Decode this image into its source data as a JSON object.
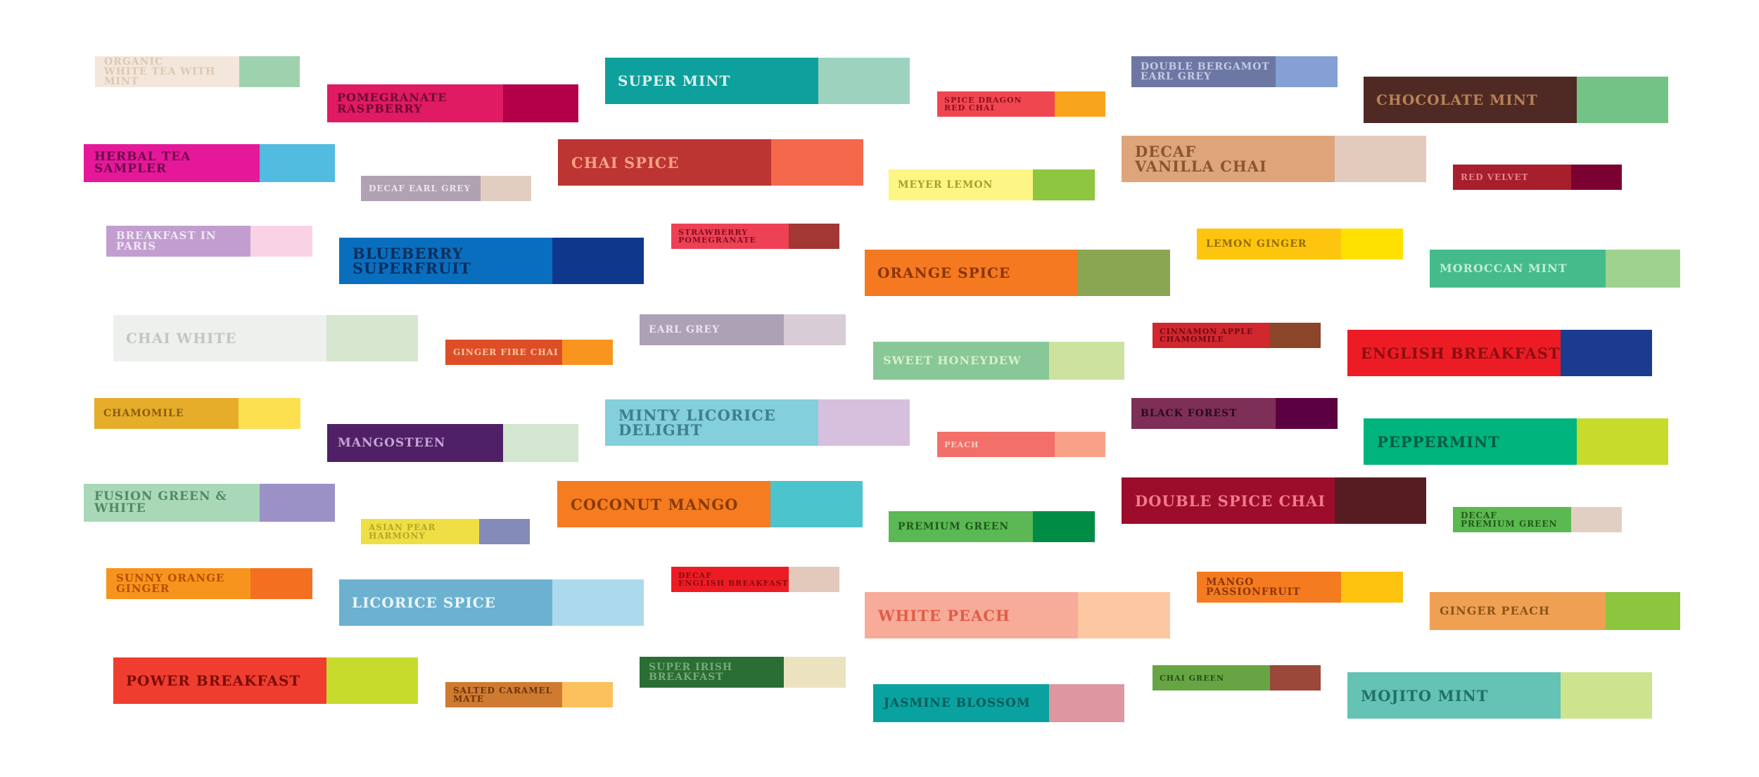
{
  "swatches": [
    {
      "label": "Organic\nWhite Tea with Mint",
      "main": "#f3e7db",
      "accent": "#9ed2ae",
      "text": "#dcc7b4"
    },
    {
      "label": "Pomegranate\nRaspberry",
      "main": "#e01a63",
      "accent": "#b40048",
      "text": "#6e0a2e"
    },
    {
      "label": "Super Mint",
      "main": "#0ea09c",
      "accent": "#9dd3be",
      "text": "#d7f1ee"
    },
    {
      "label": "Spice Dragon\nRed Chai",
      "main": "#ef4650",
      "accent": "#f8a51b",
      "text": "#8d0f1a"
    },
    {
      "label": "Double Bergamot\nEarl Grey",
      "main": "#6c77a3",
      "accent": "#85a0d4",
      "text": "#c5cbe4"
    },
    {
      "label": "Chocolate Mint",
      "main": "#4f2a24",
      "accent": "#72c385",
      "text": "#b98156"
    },
    {
      "label": "Herbal Tea Sampler",
      "main": "#e5189a",
      "accent": "#52bbe0",
      "text": "#6d0b4a"
    },
    {
      "label": "Decaf Earl Grey",
      "main": "#b1a2b2",
      "accent": "#e2cec1",
      "text": "#ece3ee"
    },
    {
      "label": "Chai Spice",
      "main": "#bc3532",
      "accent": "#f4684b",
      "text": "#f7a282"
    },
    {
      "label": "Meyer Lemon",
      "main": "#fdf584",
      "accent": "#8ec63f",
      "text": "#a7a02b"
    },
    {
      "label": "Decaf\nVanilla Chai",
      "main": "#dea57a",
      "accent": "#e2cbbd",
      "text": "#8a5631"
    },
    {
      "label": "Red Velvet",
      "main": "#a71e2d",
      "accent": "#7a0131",
      "text": "#e58491"
    },
    {
      "label": "Breakfast in Paris",
      "main": "#c29ed0",
      "accent": "#fad2e5",
      "text": "#f2e6f6"
    },
    {
      "label": "Blueberry\nSuperfruit",
      "main": "#0a6ebe",
      "accent": "#0f388c",
      "text": "#072f5f"
    },
    {
      "label": "Strawberry\nPomegranate",
      "main": "#ee4156",
      "accent": "#a23734",
      "text": "#80101d"
    },
    {
      "label": "Orange Spice",
      "main": "#f47921",
      "accent": "#8ba652",
      "text": "#8a3406"
    },
    {
      "label": "Lemon Ginger",
      "main": "#fdc50d",
      "accent": "#fee100",
      "text": "#946c00"
    },
    {
      "label": "Moroccan Mint",
      "main": "#45bb8c",
      "accent": "#9fd18f",
      "text": "#c2ecd9"
    },
    {
      "label": "Chai White",
      "main": "#eef0ee",
      "accent": "#d6e6cf",
      "text": "#c2c7c4"
    },
    {
      "label": "Ginger Fire Chai",
      "main": "#dd4e27",
      "accent": "#f8951f",
      "text": "#fac5a3"
    },
    {
      "label": "Earl Grey",
      "main": "#ada1b6",
      "accent": "#d8ccd6",
      "text": "#ebe5ee"
    },
    {
      "label": "Sweet Honeydew",
      "main": "#88c797",
      "accent": "#cde29e",
      "text": "#d6f1c8"
    },
    {
      "label": "Cinnamon Apple\nChamomile",
      "main": "#d1272f",
      "accent": "#8b4528",
      "text": "#6c0a12"
    },
    {
      "label": "English Breakfast",
      "main": "#ed1c24",
      "accent": "#1b3c8e",
      "text": "#8c0d12"
    },
    {
      "label": "Chamomile",
      "main": "#e5ad2a",
      "accent": "#fde050",
      "text": "#8a5c0a"
    },
    {
      "label": "Mangosteen",
      "main": "#502066",
      "accent": "#d3e6cf",
      "text": "#c4a4d6"
    },
    {
      "label": "Minty Licorice\nDelight",
      "main": "#83cfdb",
      "accent": "#d6c0dd",
      "text": "#3e7f8b"
    },
    {
      "label": "Black Forest",
      "main": "#7e2f57",
      "accent": "#5b0040",
      "text": "#2a0a1e"
    },
    {
      "label": "Peppermint",
      "main": "#00b47d",
      "accent": "#c6db2c",
      "text": "#075c40"
    },
    {
      "label": "Peach",
      "main": "#f36f69",
      "accent": "#f9a188",
      "text": "#fbd0c6"
    },
    {
      "label": "Fusion Green & White",
      "main": "#a9d8b8",
      "accent": "#9b91c6",
      "text": "#4e8a62"
    },
    {
      "label": "Coconut Mango",
      "main": "#f57c21",
      "accent": "#4cc4cd",
      "text": "#8a3b06"
    },
    {
      "label": "Double Spice Chai",
      "main": "#9b0d2b",
      "accent": "#571b22",
      "text": "#f27a8d"
    },
    {
      "label": "Asian Pear Harmony",
      "main": "#efdf44",
      "accent": "#848bb8",
      "text": "#b3a62a"
    },
    {
      "label": "Premium Green",
      "main": "#5cb755",
      "accent": "#008c45",
      "text": "#1f5a1b"
    },
    {
      "label": "Decaf\nPremium Green",
      "main": "#5cb850",
      "accent": "#e2cfc3",
      "text": "#225a1b"
    },
    {
      "label": "Sunny Orange Ginger",
      "main": "#f7941d",
      "accent": "#f47021",
      "text": "#b34e00"
    },
    {
      "label": "Licorice Spice",
      "main": "#6cb2d0",
      "accent": "#acdaec",
      "text": "#e9f6fb"
    },
    {
      "label": "Decaf\nEnglish Breakfast",
      "main": "#ed1c24",
      "accent": "#e2c9bb",
      "text": "#8a0c11"
    },
    {
      "label": "White Peach",
      "main": "#f7ab99",
      "accent": "#fdc7a1",
      "text": "#e05d47"
    },
    {
      "label": "Mango Passionfruit",
      "main": "#f47b20",
      "accent": "#fec30f",
      "text": "#8a3606"
    },
    {
      "label": "Ginger Peach",
      "main": "#efa053",
      "accent": "#8cc63f",
      "text": "#8a5518"
    },
    {
      "label": "Power Breakfast",
      "main": "#ef3d30",
      "accent": "#c6db2c",
      "text": "#7c0d06"
    },
    {
      "label": "Salted Caramel Mate",
      "main": "#ce7b31",
      "accent": "#fcc15c",
      "text": "#6e330a"
    },
    {
      "label": "Super Irish\nBreakfast",
      "main": "#2a6e34",
      "accent": "#ebe3bf",
      "text": "#78a97a"
    },
    {
      "label": "Jasmine Blossom",
      "main": "#09a2a0",
      "accent": "#de96a1",
      "text": "#055b5a"
    },
    {
      "label": "Chai Green",
      "main": "#67a544",
      "accent": "#9b4739",
      "text": "#234f12"
    },
    {
      "label": "Mojito Mint",
      "main": "#64c3b4",
      "accent": "#cde38e",
      "text": "#22706a"
    }
  ]
}
